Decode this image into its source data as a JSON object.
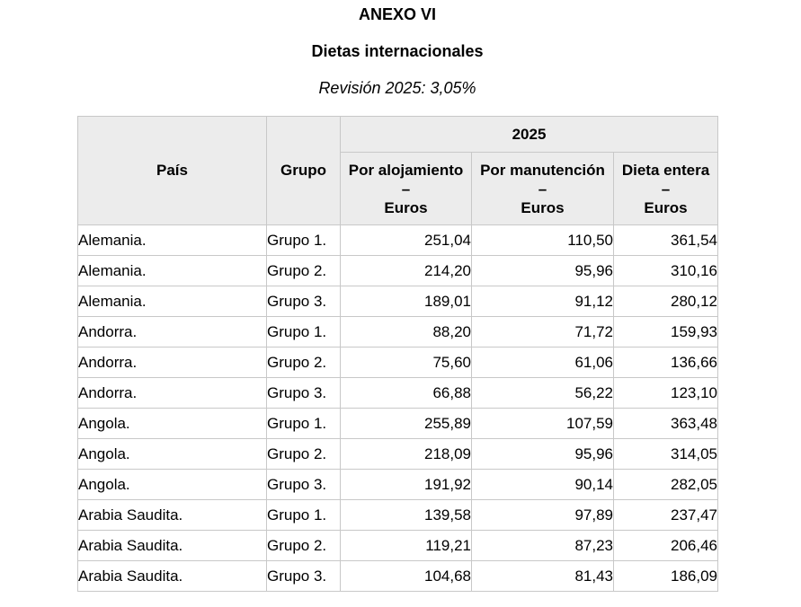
{
  "document": {
    "title": "ANEXO VI",
    "subtitle": "Dietas internacionales",
    "revision": "Revisión 2025: 3,05%"
  },
  "table": {
    "headers": {
      "country": "País",
      "group": "Grupo",
      "year": "2025",
      "lodging": [
        "Por alojamiento",
        "–",
        "Euros"
      ],
      "maintenance": [
        "Por manutención",
        "–",
        "Euros"
      ],
      "full": [
        "Dieta entera",
        "–",
        "Euros"
      ]
    },
    "rows": [
      {
        "country": "Alemania.",
        "group": "Grupo 1.",
        "lodging": "251,04",
        "maintenance": "110,50",
        "full": "361,54"
      },
      {
        "country": "Alemania.",
        "group": "Grupo 2.",
        "lodging": "214,20",
        "maintenance": "95,96",
        "full": "310,16"
      },
      {
        "country": "Alemania.",
        "group": "Grupo 3.",
        "lodging": "189,01",
        "maintenance": "91,12",
        "full": "280,12"
      },
      {
        "country": "Andorra.",
        "group": "Grupo 1.",
        "lodging": "88,20",
        "maintenance": "71,72",
        "full": "159,93"
      },
      {
        "country": "Andorra.",
        "group": "Grupo 2.",
        "lodging": "75,60",
        "maintenance": "61,06",
        "full": "136,66"
      },
      {
        "country": "Andorra.",
        "group": "Grupo 3.",
        "lodging": "66,88",
        "maintenance": "56,22",
        "full": "123,10"
      },
      {
        "country": "Angola.",
        "group": "Grupo 1.",
        "lodging": "255,89",
        "maintenance": "107,59",
        "full": "363,48"
      },
      {
        "country": "Angola.",
        "group": "Grupo 2.",
        "lodging": "218,09",
        "maintenance": "95,96",
        "full": "314,05"
      },
      {
        "country": "Angola.",
        "group": "Grupo 3.",
        "lodging": "191,92",
        "maintenance": "90,14",
        "full": "282,05"
      },
      {
        "country": "Arabia Saudita.",
        "group": "Grupo 1.",
        "lodging": "139,58",
        "maintenance": "97,89",
        "full": "237,47"
      },
      {
        "country": "Arabia Saudita.",
        "group": "Grupo 2.",
        "lodging": "119,21",
        "maintenance": "87,23",
        "full": "206,46"
      },
      {
        "country": "Arabia Saudita.",
        "group": "Grupo 3.",
        "lodging": "104,68",
        "maintenance": "81,43",
        "full": "186,09"
      }
    ]
  }
}
